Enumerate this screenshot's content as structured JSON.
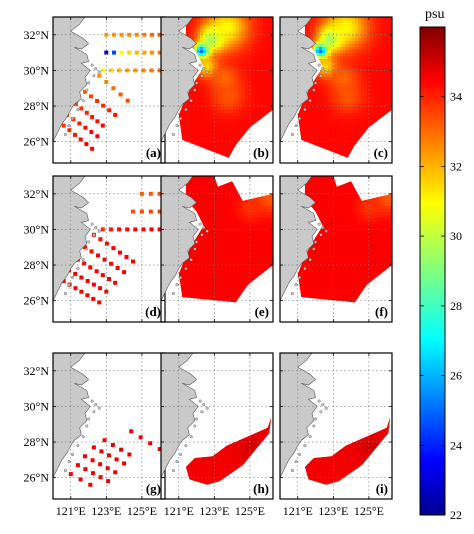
{
  "chart_data": {
    "type": "heatmap",
    "colorbar": {
      "unit": "psu",
      "min": 22,
      "max": 36,
      "ticks": [
        22,
        24,
        26,
        28,
        30,
        32,
        34
      ],
      "colormap": "jet"
    },
    "axes": {
      "x_ticks": [
        "121°E",
        "123°E",
        "125°E"
      ],
      "x_tick_values": [
        121,
        123,
        125
      ],
      "y_ticks": [
        "32°N",
        "30°N",
        "28°N",
        "26°N"
      ],
      "y_tick_values": [
        32,
        30,
        28,
        26
      ],
      "lon_range": [
        120,
        126.3
      ],
      "lat_range": [
        24.8,
        33
      ],
      "grid": "dotted"
    },
    "rows": [
      {
        "station_lines": [
          {
            "lat": 32,
            "lon_start": 123.0,
            "lon_end": 126.0,
            "n": 8,
            "sal": [
              32.2,
              32.3,
              32.4,
              32.5,
              32.5,
              32.8,
              33.0,
              33.2
            ]
          },
          {
            "lat": 31,
            "lon_start": 123.0,
            "lon_end": 126.0,
            "n": 8,
            "sal": [
              23.0,
              24.5,
              31.0,
              31.5,
              32.0,
              32.2,
              32.5,
              32.8
            ]
          },
          {
            "lat": 30,
            "lon_start": 122.8,
            "lon_end": 126.0,
            "n": 8,
            "sal": [
              31.0,
              31.6,
              32.0,
              32.3,
              32.4,
              32.6,
              32.8,
              33.0
            ]
          },
          {
            "lat_start": 29.7,
            "lon_start": 122.6,
            "lat_end": 28.3,
            "lon_end": 124.2,
            "n": 5,
            "sal": [
              32.4,
              32.6,
              33.0,
              33.3,
              33.5
            ]
          },
          {
            "lat_start": 28.8,
            "lon_start": 121.8,
            "lat_end": 27.5,
            "lon_end": 123.5,
            "n": 6,
            "sal": [
              33.2,
              33.5,
              33.8,
              34.0,
              34.1,
              34.2
            ]
          },
          {
            "lat_start": 28.1,
            "lon_start": 121.3,
            "lat_end": 26.9,
            "lon_end": 122.8,
            "n": 6,
            "sal": [
              33.5,
              33.8,
              34.0,
              34.2,
              34.3,
              34.4
            ]
          },
          {
            "lat_start": 27.5,
            "lon_start": 120.8,
            "lat_end": 26.3,
            "lon_end": 122.5,
            "n": 6,
            "sal": [
              33.6,
              33.9,
              34.1,
              34.3,
              34.4,
              34.5
            ]
          },
          {
            "lat_start": 26.9,
            "lon_start": 120.6,
            "lat_end": 25.6,
            "lon_end": 122.2,
            "n": 6,
            "sal": [
              33.8,
              34.0,
              34.2,
              34.3,
              34.5,
              34.6
            ]
          }
        ]
      },
      {
        "station_lines": [
          {
            "lat": 32,
            "lon_start": 125.0,
            "lon_end": 126.0,
            "n": 3,
            "sal": [
              33.2,
              33.3,
              33.4
            ]
          },
          {
            "lat": 31,
            "lon_start": 124.5,
            "lon_end": 126.0,
            "n": 4,
            "sal": [
              33.4,
              33.5,
              33.6,
              33.6
            ]
          },
          {
            "lat": 30,
            "lon_start": 122.8,
            "lon_end": 126.0,
            "n": 8,
            "sal": [
              34.0,
              34.2,
              34.4,
              34.5,
              34.5,
              34.6,
              34.6,
              34.5
            ]
          },
          {
            "lat_start": 29.7,
            "lon_start": 122.3,
            "lat_end": 28.2,
            "lon_end": 124.5,
            "n": 7,
            "sal": [
              34.2,
              34.3,
              34.4,
              34.5,
              34.5,
              34.5,
              34.5
            ]
          },
          {
            "lat_start": 29.0,
            "lon_start": 121.8,
            "lat_end": 27.6,
            "lon_end": 124.0,
            "n": 7,
            "sal": [
              34.3,
              34.4,
              34.5,
              34.5,
              34.5,
              34.5,
              34.5
            ]
          },
          {
            "lat_start": 28.3,
            "lon_start": 121.4,
            "lat_end": 27.0,
            "lon_end": 123.5,
            "n": 7,
            "sal": [
              34.3,
              34.4,
              34.5,
              34.5,
              34.5,
              34.5,
              34.5
            ]
          },
          {
            "lat_start": 27.7,
            "lon_start": 120.9,
            "lat_end": 26.5,
            "lon_end": 123.0,
            "n": 7,
            "sal": [
              34.4,
              34.5,
              34.5,
              34.5,
              34.5,
              34.5,
              34.5
            ]
          },
          {
            "lat_start": 27.1,
            "lon_start": 120.6,
            "lat_end": 25.9,
            "lon_end": 122.6,
            "n": 7,
            "sal": [
              34.4,
              34.5,
              34.5,
              34.5,
              34.5,
              34.5,
              34.5
            ]
          }
        ]
      },
      {
        "station_lines": [
          {
            "lat_start": 28.6,
            "lon_start": 124.4,
            "lat_end": 27.6,
            "lon_end": 126.0,
            "n": 4,
            "sal": [
              34.6,
              34.6,
              34.7,
              34.7
            ]
          },
          {
            "lat_start": 28.1,
            "lon_start": 122.9,
            "lat_end": 27.3,
            "lon_end": 124.3,
            "n": 4,
            "sal": [
              34.6,
              34.6,
              34.7,
              34.7
            ]
          },
          {
            "lat_start": 27.7,
            "lon_start": 122.3,
            "lat_end": 26.8,
            "lon_end": 124.0,
            "n": 5,
            "sal": [
              34.6,
              34.6,
              34.7,
              34.7,
              34.7
            ]
          },
          {
            "lat_start": 27.2,
            "lon_start": 121.8,
            "lat_end": 26.3,
            "lon_end": 123.5,
            "n": 5,
            "sal": [
              34.6,
              34.6,
              34.7,
              34.7,
              34.7
            ]
          },
          {
            "lat_start": 26.7,
            "lon_start": 121.4,
            "lat_end": 25.8,
            "lon_end": 123.1,
            "n": 5,
            "sal": [
              34.6,
              34.6,
              34.7,
              34.7,
              34.7
            ]
          },
          {
            "lat_start": 26.2,
            "lon_start": 121.0,
            "lat_end": 25.6,
            "lon_end": 122.1,
            "n": 3,
            "sal": [
              34.6,
              34.7,
              34.7
            ]
          }
        ]
      }
    ],
    "fields": [
      {
        "domain": [
          [
            121.4,
            33.0
          ],
          [
            126.3,
            33.0
          ],
          [
            126.3,
            27.8
          ],
          [
            125.0,
            26.8
          ],
          [
            124.2,
            25.8
          ],
          [
            123.8,
            25.1
          ],
          [
            121.2,
            26.1
          ],
          [
            121.0,
            27.5
          ],
          [
            121.4,
            28.5
          ],
          [
            121.9,
            29.4
          ],
          [
            122.4,
            30.2
          ],
          [
            122.0,
            31.0
          ],
          [
            121.4,
            31.7
          ]
        ],
        "sources": [
          {
            "lon": 122.3,
            "lat": 31.1,
            "sal": 23.0,
            "r": 0.4
          },
          {
            "lon": 122.9,
            "lat": 31.8,
            "sal": 28.5,
            "r": 0.7
          },
          {
            "lon": 123.7,
            "lat": 32.4,
            "sal": 31.0,
            "r": 1.2
          },
          {
            "lon": 122.6,
            "lat": 30.2,
            "sal": 31.3,
            "r": 0.6
          },
          {
            "lon": 123.6,
            "lat": 29.5,
            "sal": 33.0,
            "r": 0.8
          },
          {
            "lon": 123.8,
            "lat": 28.5,
            "sal": 33.3,
            "r": 0.9
          }
        ],
        "background": 34.4
      },
      {
        "domain": [
          [
            121.4,
            33.0
          ],
          [
            123.0,
            33.0
          ],
          [
            123.2,
            32.4
          ],
          [
            124.0,
            32.7
          ],
          [
            124.6,
            31.6
          ],
          [
            126.3,
            32.0
          ],
          [
            126.3,
            28.0
          ],
          [
            124.9,
            26.9
          ],
          [
            124.2,
            25.9
          ],
          [
            121.2,
            26.2
          ],
          [
            121.0,
            27.5
          ],
          [
            121.4,
            28.5
          ],
          [
            121.9,
            29.4
          ],
          [
            122.4,
            30.2
          ],
          [
            122.0,
            31.0
          ],
          [
            121.4,
            31.7
          ]
        ],
        "sources": [
          {
            "lon": 126.1,
            "lat": 31.8,
            "sal": 33.2,
            "r": 0.9
          },
          {
            "lon": 125.0,
            "lat": 31.2,
            "sal": 33.8,
            "r": 0.7
          }
        ],
        "background": 34.5
      },
      {
        "domain": [
          [
            123.7,
            27.8
          ],
          [
            126.0,
            28.8
          ],
          [
            126.2,
            29.4
          ],
          [
            126.1,
            28.5
          ],
          [
            124.6,
            26.7
          ],
          [
            123.3,
            25.8
          ],
          [
            122.6,
            25.6
          ],
          [
            121.6,
            25.9
          ],
          [
            121.4,
            26.6
          ],
          [
            121.9,
            27.1
          ],
          [
            122.9,
            27.2
          ]
        ],
        "sources": [
          {
            "lon": 125.2,
            "lat": 27.6,
            "sal": 35.0,
            "r": 0.8
          }
        ],
        "background": 34.6
      }
    ],
    "panel_labels": [
      "(a)",
      "(b)",
      "(c)",
      "(d)",
      "(e)",
      "(f)",
      "(g)",
      "(h)",
      "(i)"
    ]
  }
}
